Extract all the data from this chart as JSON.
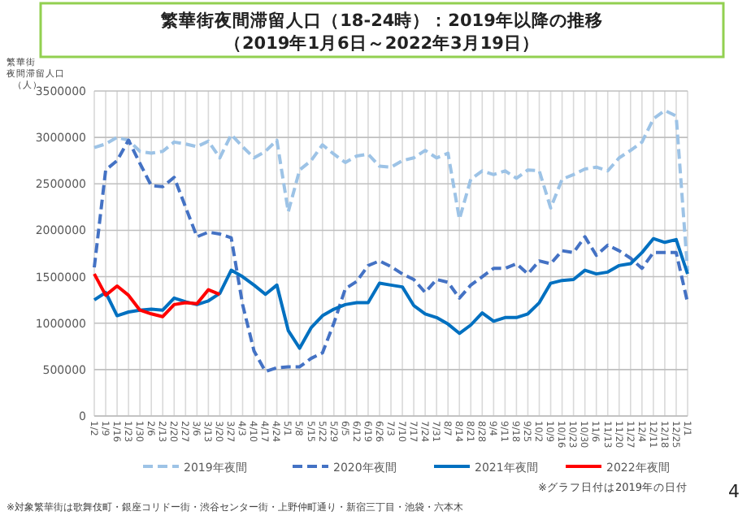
{
  "chart_data": {
    "type": "line",
    "title": "繁華街夜間滞留人口（18-24時）：2019年以降の推移",
    "subtitle": "（2019年1月6日～2022年3月19日）",
    "ylabel": "繁華街夜間滞留人口（人）",
    "categories": [
      "1/2",
      "1/9",
      "1/16",
      "1/23",
      "1/30",
      "2/6",
      "2/13",
      "2/20",
      "2/27",
      "3/6",
      "3/13",
      "3/20",
      "3/27",
      "4/3",
      "4/10",
      "4/17",
      "4/24",
      "5/1",
      "5/8",
      "5/15",
      "5/22",
      "5/29",
      "6/5",
      "6/12",
      "6/19",
      "6/26",
      "7/3",
      "7/10",
      "7/17",
      "7/24",
      "7/31",
      "8/7",
      "8/14",
      "8/21",
      "8/28",
      "9/4",
      "9/11",
      "9/18",
      "9/25",
      "10/2",
      "10/9",
      "10/16",
      "10/23",
      "10/30",
      "11/6",
      "11/13",
      "11/20",
      "11/27",
      "12/4",
      "12/11",
      "12/18",
      "12/25",
      "1/1"
    ],
    "series": [
      {
        "name": "2019年夜間",
        "color": "#9dc3e6",
        "line_style": "dashed",
        "values": [
          2890000,
          2930000,
          3000000,
          2970000,
          2850000,
          2830000,
          2850000,
          2950000,
          2930000,
          2900000,
          2960000,
          2780000,
          3030000,
          2900000,
          2780000,
          2850000,
          2970000,
          2200000,
          2650000,
          2750000,
          2920000,
          2820000,
          2730000,
          2800000,
          2820000,
          2690000,
          2680000,
          2750000,
          2780000,
          2860000,
          2780000,
          2830000,
          2120000,
          2550000,
          2640000,
          2600000,
          2640000,
          2560000,
          2650000,
          2640000,
          2240000,
          2550000,
          2600000,
          2660000,
          2680000,
          2640000,
          2780000,
          2860000,
          2950000,
          3200000,
          3290000,
          3230000,
          1560000
        ]
      },
      {
        "name": "2020年夜間",
        "color": "#4472c4",
        "line_style": "dashed",
        "values": [
          1600000,
          2650000,
          2750000,
          2970000,
          2720000,
          2480000,
          2470000,
          2570000,
          2250000,
          1930000,
          1980000,
          1960000,
          1920000,
          1200000,
          700000,
          480000,
          520000,
          530000,
          530000,
          620000,
          680000,
          1000000,
          1370000,
          1450000,
          1620000,
          1670000,
          1610000,
          1530000,
          1470000,
          1330000,
          1470000,
          1440000,
          1270000,
          1410000,
          1500000,
          1590000,
          1590000,
          1640000,
          1530000,
          1670000,
          1640000,
          1780000,
          1760000,
          1930000,
          1730000,
          1840000,
          1780000,
          1700000,
          1590000,
          1760000,
          1760000,
          1760000,
          1220000
        ]
      },
      {
        "name": "2021年夜間",
        "color": "#0070c0",
        "line_style": "solid",
        "values": [
          1250000,
          1330000,
          1080000,
          1120000,
          1140000,
          1150000,
          1140000,
          1270000,
          1230000,
          1200000,
          1240000,
          1320000,
          1570000,
          1500000,
          1410000,
          1310000,
          1410000,
          920000,
          730000,
          950000,
          1080000,
          1150000,
          1200000,
          1220000,
          1220000,
          1430000,
          1410000,
          1390000,
          1190000,
          1100000,
          1060000,
          990000,
          890000,
          980000,
          1110000,
          1020000,
          1060000,
          1060000,
          1100000,
          1220000,
          1430000,
          1460000,
          1470000,
          1570000,
          1530000,
          1550000,
          1620000,
          1640000,
          1760000,
          1910000,
          1870000,
          1900000,
          1530000
        ]
      },
      {
        "name": "2022年夜間",
        "color": "#ff0000",
        "line_style": "solid",
        "values": [
          1530000,
          1300000,
          1400000,
          1300000,
          1140000,
          1100000,
          1070000,
          1200000,
          1220000,
          1210000,
          1360000,
          1310000,
          null,
          null,
          null,
          null,
          null,
          null,
          null,
          null,
          null,
          null,
          null,
          null,
          null,
          null,
          null,
          null,
          null,
          null,
          null,
          null,
          null,
          null,
          null,
          null,
          null,
          null,
          null,
          null,
          null,
          null,
          null,
          null,
          null,
          null,
          null,
          null,
          null,
          null,
          null,
          null,
          null
        ]
      }
    ],
    "ylim": [
      0,
      3500000
    ],
    "yticks": [
      0,
      500000,
      1000000,
      1500000,
      2000000,
      2500000,
      3000000,
      3500000
    ],
    "grid": true,
    "legend": "bottom",
    "marker": "none",
    "annotations": [
      "※グラフ日付は2019年の日付",
      "※対象繁華街は歌舞伎町・銀座コリドー街・渋谷センター街・上野仲町通り・新宿三丁目・池袋・六本木",
      "4"
    ]
  }
}
